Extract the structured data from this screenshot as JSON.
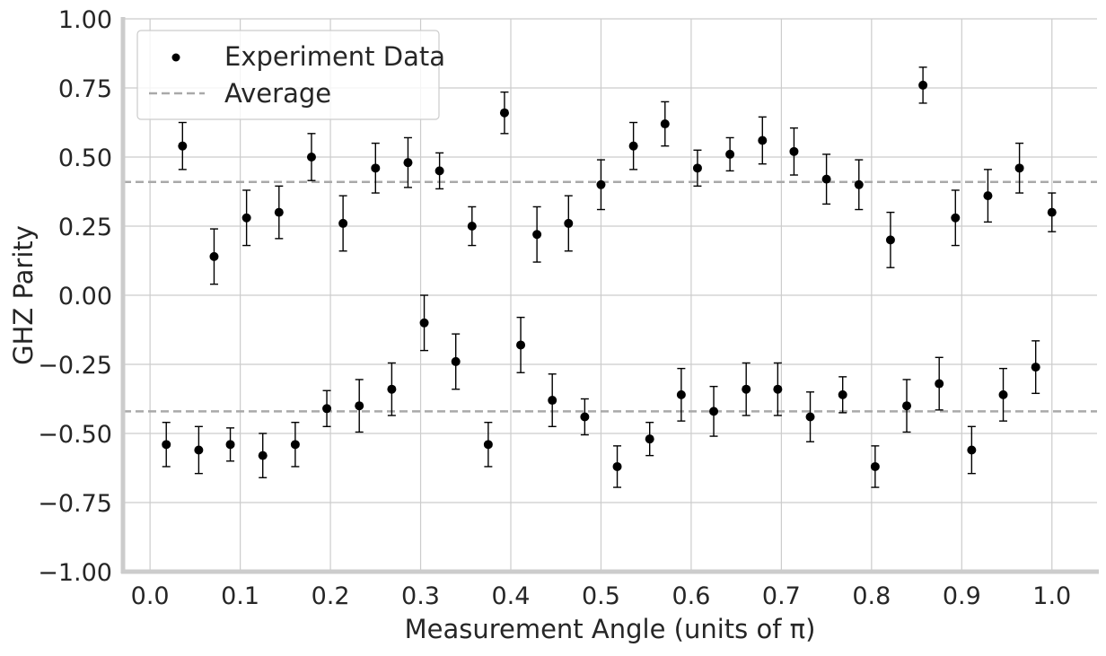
{
  "chart_data": {
    "type": "scatter",
    "xlabel": "Measurement Angle (units of π)",
    "ylabel": "GHZ Parity",
    "xlim": [
      -0.03,
      1.05
    ],
    "ylim": [
      -1.0,
      1.0
    ],
    "xticks": [
      "0.0",
      "0.1",
      "0.2",
      "0.3",
      "0.4",
      "0.5",
      "0.6",
      "0.7",
      "0.8",
      "0.9",
      "1.0"
    ],
    "yticks": [
      "−1.00",
      "−0.75",
      "−0.50",
      "−0.25",
      "0.00",
      "0.25",
      "0.50",
      "0.75",
      "1.00"
    ],
    "grid": true,
    "legend_position": "top-left",
    "legend": [
      {
        "label": "Experiment Data",
        "marker": "dot"
      },
      {
        "label": "Average",
        "marker": "dashed-line"
      }
    ],
    "colors": {
      "points": "#000000",
      "average": "#a9a9a9",
      "grid": "#cccccc",
      "axes": "#cccccc"
    },
    "averages": [
      0.41,
      -0.42
    ],
    "series": [
      {
        "x": [
          0.036,
          0.071,
          0.107,
          0.143,
          0.179,
          0.214,
          0.25,
          0.286,
          0.321,
          0.357,
          0.393,
          0.429,
          0.464,
          0.5,
          0.536,
          0.571,
          0.607,
          0.643,
          0.679,
          0.714,
          0.75,
          0.786,
          0.821,
          0.857,
          0.893,
          0.929,
          0.964,
          1.0
        ],
        "y": [
          0.54,
          0.14,
          0.28,
          0.3,
          0.5,
          0.26,
          0.46,
          0.48,
          0.45,
          0.25,
          0.66,
          0.22,
          0.26,
          0.4,
          0.54,
          0.62,
          0.46,
          0.51,
          0.56,
          0.52,
          0.42,
          0.4,
          0.2,
          0.76,
          0.28,
          0.36,
          0.46,
          0.3
        ],
        "err": [
          0.085,
          0.1,
          0.1,
          0.095,
          0.085,
          0.1,
          0.09,
          0.09,
          0.065,
          0.07,
          0.075,
          0.1,
          0.1,
          0.09,
          0.085,
          0.08,
          0.065,
          0.06,
          0.085,
          0.085,
          0.09,
          0.09,
          0.1,
          0.065,
          0.1,
          0.095,
          0.09,
          0.07
        ]
      },
      {
        "x": [
          0.018,
          0.054,
          0.089,
          0.125,
          0.161,
          0.196,
          0.232,
          0.268,
          0.304,
          0.339,
          0.375,
          0.411,
          0.446,
          0.482,
          0.518,
          0.554,
          0.589,
          0.625,
          0.661,
          0.696,
          0.732,
          0.768,
          0.804,
          0.839,
          0.875,
          0.911,
          0.946,
          0.982
        ],
        "y": [
          -0.54,
          -0.56,
          -0.54,
          -0.58,
          -0.54,
          -0.41,
          -0.4,
          -0.34,
          -0.1,
          -0.24,
          -0.54,
          -0.18,
          -0.38,
          -0.44,
          -0.62,
          -0.52,
          -0.36,
          -0.42,
          -0.34,
          -0.34,
          -0.44,
          -0.36,
          -0.62,
          -0.4,
          -0.32,
          -0.56,
          -0.36,
          -0.26
        ],
        "err": [
          0.08,
          0.085,
          0.06,
          0.08,
          0.08,
          0.065,
          0.095,
          0.095,
          0.1,
          0.1,
          0.08,
          0.1,
          0.095,
          0.065,
          0.075,
          0.06,
          0.095,
          0.09,
          0.095,
          0.095,
          0.09,
          0.065,
          0.075,
          0.095,
          0.095,
          0.085,
          0.095,
          0.095
        ]
      }
    ]
  }
}
